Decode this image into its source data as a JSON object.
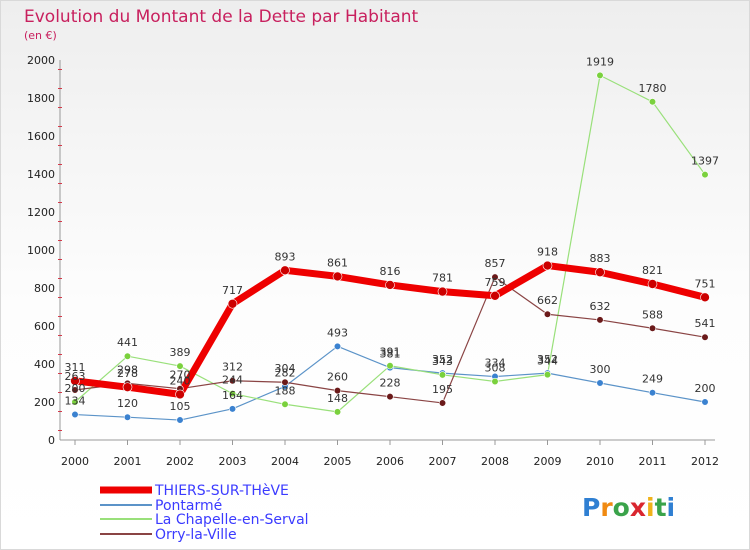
{
  "chart_data": {
    "type": "line",
    "title": "Evolution du Montant de la Dette par Habitant",
    "subtitle": "(en €)",
    "x": [
      "2000",
      "2001",
      "2002",
      "2003",
      "2004",
      "2005",
      "2006",
      "2007",
      "2008",
      "2009",
      "2010",
      "2011",
      "2012"
    ],
    "ylim": [
      0,
      2000
    ],
    "yticks": [
      0,
      200,
      400,
      600,
      800,
      1000,
      1200,
      1400,
      1600,
      1800,
      2000
    ],
    "grid": false,
    "legend_position": "bottom-left",
    "series": [
      {
        "name": "THIERS-SUR-THèVE",
        "color": "#ee0000",
        "dot": "#cc0000",
        "width": 7,
        "values": [
          311,
          278,
          240,
          717,
          893,
          861,
          816,
          781,
          759,
          918,
          883,
          821,
          751
        ]
      },
      {
        "name": "Pontarmé",
        "color": "#5b93c8",
        "dot": "#3b82d0",
        "width": 1.2,
        "values": [
          134,
          120,
          105,
          164,
          282,
          493,
          381,
          352,
          334,
          352,
          300,
          249,
          200
        ]
      },
      {
        "name": "La Chapelle-en-Serval",
        "color": "#99e07a",
        "dot": "#7ad13d",
        "width": 1.2,
        "values": [
          200,
          441,
          389,
          244,
          188,
          148,
          391,
          343,
          308,
          344,
          1919,
          1780,
          1397
        ]
      },
      {
        "name": "Orry-la-Ville",
        "color": "#8a4444",
        "dot": "#6b1a1a",
        "width": 1.2,
        "values": [
          263,
          298,
          270,
          312,
          304,
          260,
          228,
          195,
          857,
          662,
          632,
          588,
          541
        ]
      }
    ]
  },
  "brand": {
    "text": "Proxiti"
  }
}
